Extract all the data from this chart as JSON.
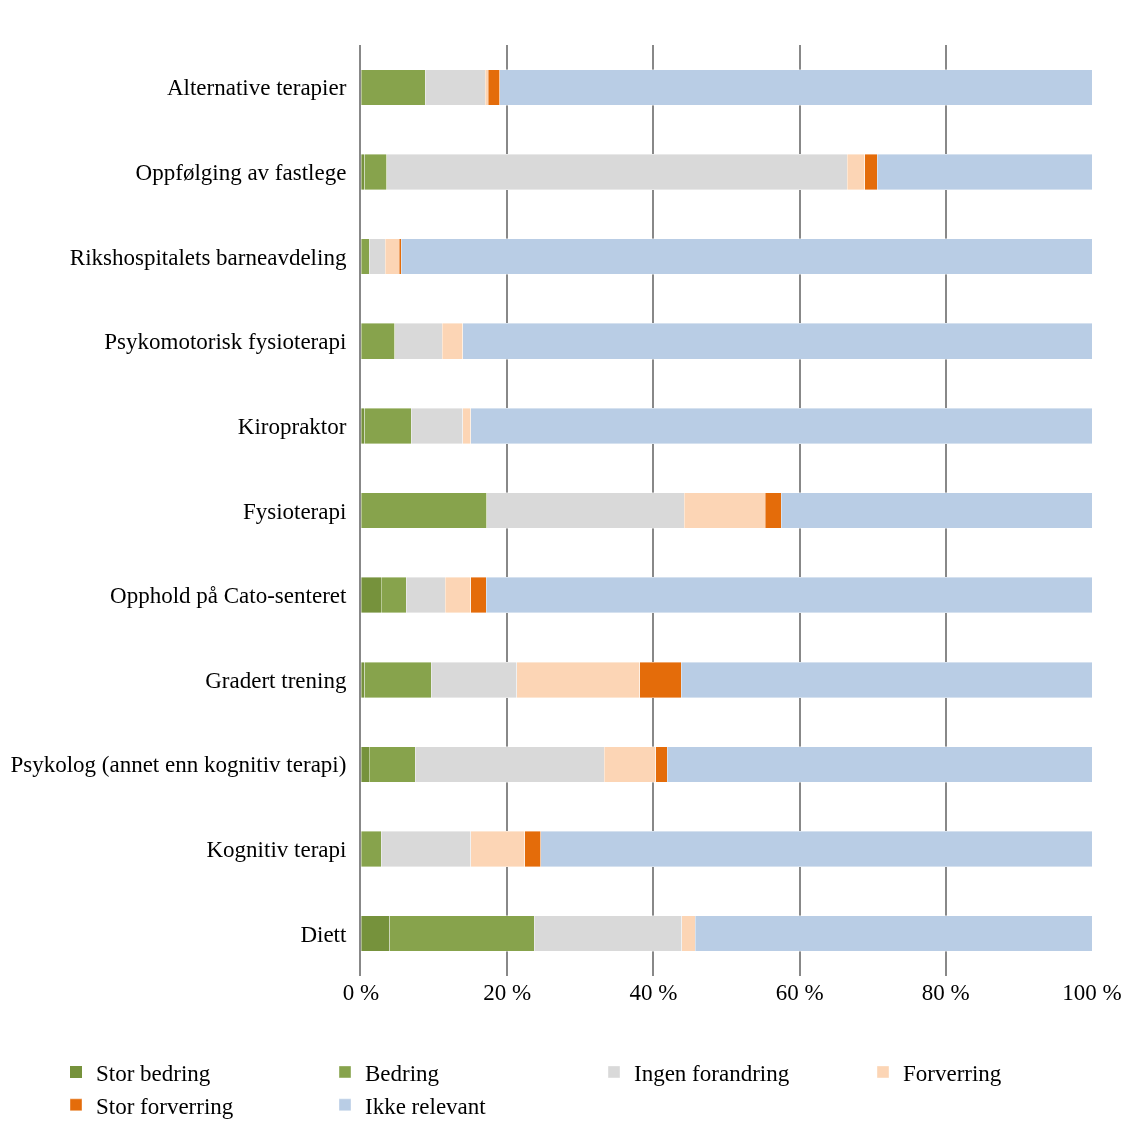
{
  "chart_data": {
    "type": "bar",
    "orientation": "horizontal",
    "stacked": true,
    "categories": [
      "Alternative terapier",
      "Oppfølging av fastlege",
      "Rikshospitalets barneavdeling",
      "Psykomotorisk fysioterapi",
      "Kiropraktor",
      "Fysioterapi",
      "Opphold på Cato-senteret",
      "Gradert trening",
      "Psykolog (annet enn kognitiv terapi)",
      "Kognitiv terapi",
      "Diett"
    ],
    "series": [
      {
        "name": "Stor bedring",
        "color": "#76923c",
        "values": [
          0,
          0.5,
          0,
          0,
          0.5,
          0,
          2.8,
          0.5,
          1.1,
          0,
          3.9
        ]
      },
      {
        "name": "Bedring",
        "color": "#87a34c",
        "values": [
          8.8,
          3.0,
          1.1,
          4.6,
          6.4,
          17.2,
          3.4,
          9.1,
          6.3,
          2.8,
          19.8
        ]
      },
      {
        "name": "Ingen forandring",
        "color": "#d9d9d9",
        "values": [
          8.2,
          63.0,
          2.2,
          6.5,
          7.0,
          27.0,
          5.3,
          11.7,
          25.9,
          12.2,
          20.2
        ]
      },
      {
        "name": "Forverring",
        "color": "#fcd5b5",
        "values": [
          0.4,
          2.4,
          1.9,
          2.8,
          1.1,
          11.1,
          3.5,
          16.8,
          7.0,
          7.4,
          1.8
        ]
      },
      {
        "name": "Stor forverring",
        "color": "#e46c0a",
        "values": [
          1.6,
          1.7,
          0.3,
          0,
          0,
          2.2,
          2.1,
          5.7,
          1.6,
          2.2,
          0
        ]
      },
      {
        "name": "Ikke relevant",
        "color": "#b9cde5",
        "values": [
          81.0,
          29.4,
          94.5,
          86.1,
          85.0,
          42.5,
          82.9,
          56.2,
          58.1,
          75.4,
          54.3
        ]
      }
    ],
    "xlim": [
      0,
      100
    ],
    "xticks": [
      {
        "value": 0,
        "label": "0 %"
      },
      {
        "value": 20,
        "label": "20 %"
      },
      {
        "value": 40,
        "label": "40 %"
      },
      {
        "value": 60,
        "label": "60 %"
      },
      {
        "value": 80,
        "label": "80 %"
      },
      {
        "value": 100,
        "label": "100 %"
      }
    ],
    "grid": "x",
    "legend": "bottom"
  }
}
